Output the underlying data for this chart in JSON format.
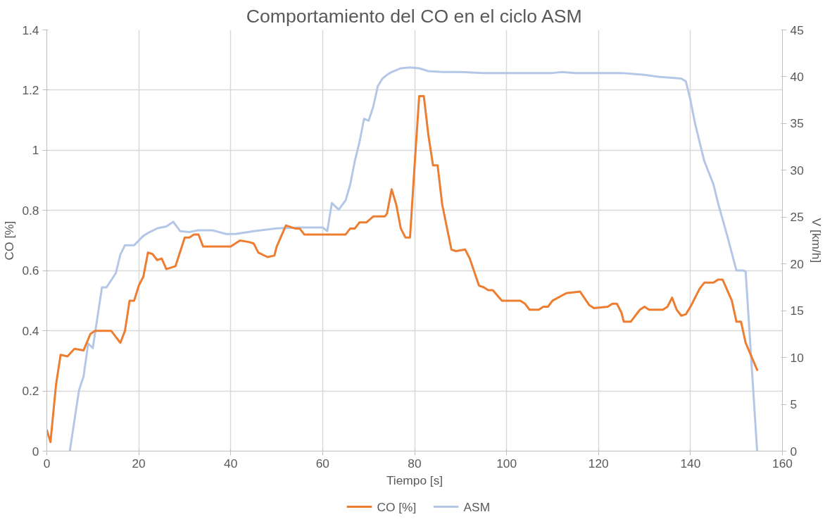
{
  "chart_data": {
    "type": "line",
    "title": "Comportamiento del CO en el ciclo ASM",
    "xlabel": "Tiempo [s]",
    "ylabel": "CO [%]",
    "y2label": "V [km/h]",
    "xlim": [
      0,
      160
    ],
    "xticks": [
      0,
      20,
      40,
      60,
      80,
      100,
      120,
      140,
      160
    ],
    "ylim": [
      0,
      1.4
    ],
    "yticks": [
      0,
      0.2,
      0.4,
      0.6,
      0.8,
      1,
      1.2,
      1.4
    ],
    "y2lim": [
      0,
      45
    ],
    "y2ticks": [
      0,
      5,
      10,
      15,
      20,
      25,
      30,
      35,
      40,
      45
    ],
    "grid": true,
    "legend": "bottom",
    "line_style": "solid",
    "series": [
      {
        "name": "CO [%]",
        "color": "#ed7d31",
        "x": [
          0,
          0.8,
          2,
          3,
          4.5,
          6,
          8,
          9.5,
          10.5,
          14,
          16,
          17,
          18,
          19,
          20,
          21,
          22,
          23,
          24,
          25,
          26,
          28,
          30,
          31,
          32,
          33,
          34,
          35,
          40,
          42,
          44,
          45,
          46,
          48,
          49.5,
          50,
          52,
          54,
          55,
          56,
          60,
          65,
          66,
          67,
          68,
          69.5,
          71,
          73.5,
          74,
          75,
          76,
          77,
          78,
          79,
          80,
          81,
          82,
          83,
          84,
          85,
          86,
          88,
          89,
          91,
          92,
          94,
          95,
          96,
          97,
          99,
          103,
          104,
          105,
          107,
          108,
          109,
          110,
          113,
          116,
          118,
          119,
          122,
          123,
          124,
          125,
          125.5,
          127,
          129,
          130,
          131,
          134,
          135,
          136,
          137,
          138,
          139,
          140,
          142,
          143,
          145,
          146,
          147,
          149,
          150,
          151,
          152,
          154.5
        ],
        "values": [
          0.07,
          0.03,
          0.22,
          0.32,
          0.315,
          0.34,
          0.335,
          0.39,
          0.4,
          0.4,
          0.36,
          0.4,
          0.5,
          0.5,
          0.55,
          0.58,
          0.66,
          0.655,
          0.635,
          0.64,
          0.605,
          0.615,
          0.71,
          0.71,
          0.72,
          0.72,
          0.68,
          0.68,
          0.68,
          0.7,
          0.695,
          0.69,
          0.66,
          0.645,
          0.65,
          0.68,
          0.75,
          0.74,
          0.74,
          0.72,
          0.72,
          0.72,
          0.74,
          0.74,
          0.76,
          0.76,
          0.78,
          0.78,
          0.79,
          0.87,
          0.82,
          0.74,
          0.71,
          0.71,
          0.95,
          1.18,
          1.18,
          1.05,
          0.95,
          0.95,
          0.82,
          0.67,
          0.665,
          0.67,
          0.64,
          0.55,
          0.545,
          0.535,
          0.535,
          0.5,
          0.5,
          0.49,
          0.47,
          0.47,
          0.48,
          0.48,
          0.5,
          0.525,
          0.53,
          0.485,
          0.475,
          0.48,
          0.49,
          0.49,
          0.46,
          0.43,
          0.43,
          0.47,
          0.48,
          0.47,
          0.47,
          0.48,
          0.51,
          0.47,
          0.45,
          0.455,
          0.48,
          0.54,
          0.56,
          0.56,
          0.57,
          0.57,
          0.5,
          0.43,
          0.43,
          0.36,
          0.27
        ]
      },
      {
        "name": "ASM",
        "color": "#b4c7e7",
        "axis": "y2",
        "x": [
          5,
          7,
          8,
          9,
          10,
          12,
          13,
          15,
          16,
          17,
          19,
          21,
          22,
          24,
          26,
          27.5,
          29,
          31,
          33,
          36,
          39,
          41,
          45,
          50,
          55,
          60,
          61,
          62,
          63.5,
          65,
          66,
          67,
          68,
          69,
          70,
          71,
          72,
          73,
          74,
          75,
          77,
          79,
          81,
          83,
          86,
          90,
          95,
          110,
          112,
          115,
          125,
          130,
          133,
          138,
          139,
          140,
          141,
          143,
          145,
          146,
          148,
          150,
          151.5,
          152,
          154.5
        ],
        "values": [
          0,
          6.5,
          8,
          11.5,
          11,
          17.5,
          17.5,
          19,
          21,
          22,
          22,
          23,
          23.3,
          23.8,
          24,
          24.5,
          23.5,
          23.4,
          23.6,
          23.6,
          23.2,
          23.2,
          23.5,
          23.8,
          23.9,
          23.9,
          23.5,
          26.5,
          25.8,
          26.8,
          28.5,
          31,
          33,
          35.5,
          35.3,
          36.8,
          39,
          39.8,
          40.2,
          40.5,
          40.9,
          41,
          40.9,
          40.6,
          40.5,
          40.5,
          40.4,
          40.4,
          40.5,
          40.4,
          40.4,
          40.2,
          40,
          39.8,
          39.5,
          37.5,
          35,
          31,
          28.5,
          26.5,
          23,
          19.3,
          19.3,
          19.2,
          0
        ]
      }
    ]
  }
}
